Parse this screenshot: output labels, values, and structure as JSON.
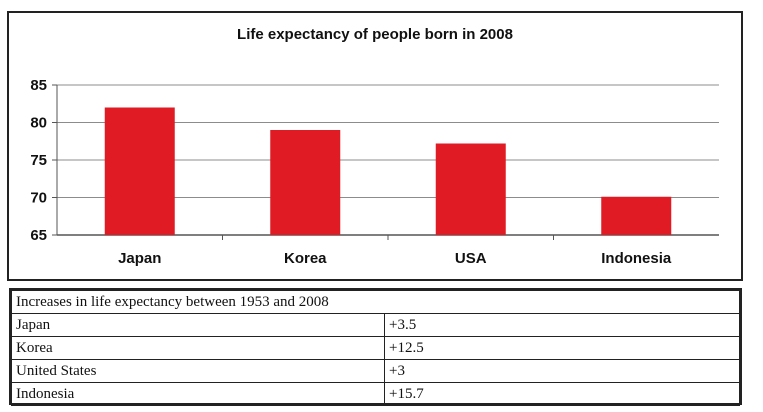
{
  "chart_data": {
    "type": "bar",
    "title": "Life expectancy of people born in 2008",
    "categories": [
      "Japan",
      "Korea",
      "USA",
      "Indonesia"
    ],
    "values": [
      82,
      79,
      77.2,
      70.1
    ],
    "ylim": [
      65,
      85
    ],
    "yticks": [
      65,
      70,
      75,
      80,
      85
    ],
    "xlabel": "",
    "ylabel": "",
    "grid": true,
    "bar_color": "#e01b24"
  },
  "table": {
    "header": "Increases in life expectancy between 1953 and 2008",
    "rows": [
      {
        "country": "Japan",
        "increase": "+3.5"
      },
      {
        "country": "Korea",
        "increase": "+12.5"
      },
      {
        "country": "United States",
        "increase": "+3"
      },
      {
        "country": "Indonesia",
        "increase": "+15.7"
      }
    ]
  }
}
